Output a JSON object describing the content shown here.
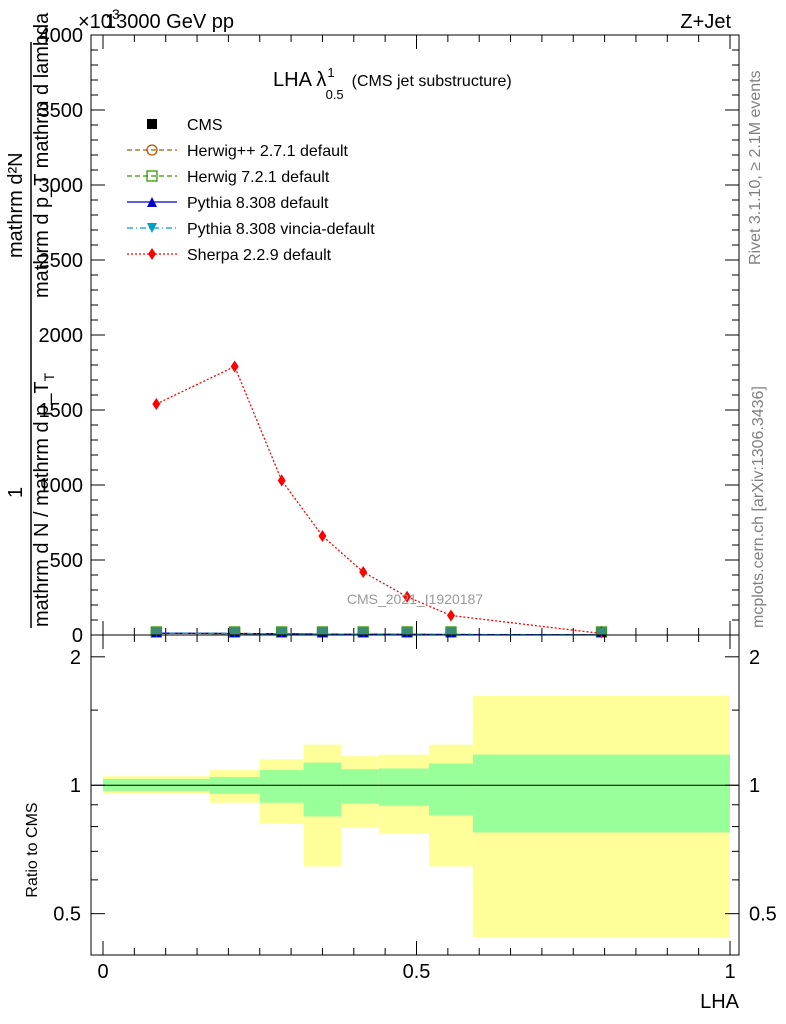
{
  "header": {
    "left": "13000 GeV pp",
    "right": "Z+Jet",
    "exponent": "×10",
    "exponent_power": "3"
  },
  "side_text": {
    "rivet": "Rivet 3.1.10, ≥ 2.1M events",
    "mcplots": "mcplots.cern.ch [arXiv:1306.3436]"
  },
  "watermark": "CMS_2021_I1920187",
  "chart_data": [
    {
      "type": "line",
      "title": "LHA λ",
      "title_sup": "1",
      "title_sub": "0.5",
      "title_suffix": "(CMS jet substructure)",
      "ylabel_top": "mathrm d²N",
      "ylabel_mid": "mathrm d p_T mathrm d lambda",
      "ylabel_one": "1",
      "ylabel_den": "mathrm d N / mathrm d p_T",
      "ylabel_den_sub": "T",
      "xlim": [
        0,
        1
      ],
      "ylim": [
        0,
        4000
      ],
      "yticks": [
        0,
        500,
        1000,
        1500,
        2000,
        2500,
        3000,
        3500,
        4000
      ],
      "ytick_labels": [
        "0",
        "500",
        "1000",
        "1500",
        "2000",
        "2500",
        "3000",
        "3500",
        "4000"
      ],
      "legend_position": "top-left",
      "series": [
        {
          "name": "CMS",
          "color": "#000000",
          "marker": "square",
          "x": [
            0.085,
            0.21,
            0.285,
            0.35,
            0.415,
            0.485,
            0.555,
            0.795
          ],
          "y": [
            12,
            10,
            8,
            6,
            5,
            4,
            3,
            1
          ]
        },
        {
          "name": "Herwig++ 2.7.1 default",
          "color": "#b35900",
          "marker": "circle-open",
          "dash": "dashed",
          "x": [
            0.085,
            0.21,
            0.285,
            0.35,
            0.415,
            0.485,
            0.555,
            0.795
          ],
          "y": [
            12,
            10,
            8,
            6,
            5,
            4,
            3,
            1
          ]
        },
        {
          "name": "Herwig 7.2.1 default",
          "color": "#339900",
          "marker": "square-open",
          "dash": "dashed",
          "x": [
            0.085,
            0.21,
            0.285,
            0.35,
            0.415,
            0.485,
            0.555,
            0.795
          ],
          "y": [
            12,
            10,
            8,
            6,
            5,
            4,
            3,
            1
          ]
        },
        {
          "name": "Pythia 8.308 default",
          "color": "#0000cc",
          "marker": "triangle-up",
          "dash": "solid",
          "x": [
            0.085,
            0.21,
            0.285,
            0.35,
            0.415,
            0.485,
            0.555,
            0.795
          ],
          "y": [
            12,
            10,
            8,
            6,
            5,
            4,
            3,
            1
          ]
        },
        {
          "name": "Pythia 8.308 vincia-default",
          "color": "#00a0c0",
          "marker": "triangle-down",
          "dash": "dashdot",
          "x": [
            0.085,
            0.21,
            0.285,
            0.35,
            0.415,
            0.485,
            0.555,
            0.795
          ],
          "y": [
            12,
            10,
            8,
            6,
            5,
            4,
            3,
            1
          ]
        },
        {
          "name": "Sherpa 2.2.9 default",
          "color": "#ff0000",
          "marker": "diamond",
          "dash": "dotted",
          "x": [
            0.085,
            0.21,
            0.285,
            0.35,
            0.415,
            0.485,
            0.555,
            0.795
          ],
          "y": [
            1540,
            1790,
            1030,
            660,
            420,
            255,
            130,
            10
          ]
        }
      ]
    },
    {
      "type": "area",
      "ylabel": "Ratio to CMS",
      "xlabel": "LHA",
      "xlim": [
        0,
        1
      ],
      "ylim": [
        0.4,
        2.25
      ],
      "yticks": [
        0.5,
        1,
        2
      ],
      "ytick_labels": [
        "0.5",
        "1",
        "2"
      ],
      "xticks": [
        0,
        0.5,
        1
      ],
      "xtick_labels": [
        "0",
        "0.5",
        "1"
      ],
      "reference": 1,
      "bands": [
        {
          "name": "stat",
          "color": "#99ff99",
          "edges": [
            0,
            0.17,
            0.25,
            0.32,
            0.38,
            0.44,
            0.52,
            0.59,
            1.0
          ],
          "lo": [
            0.97,
            0.955,
            0.91,
            0.845,
            0.905,
            0.895,
            0.85,
            0.775
          ],
          "hi": [
            1.035,
            1.045,
            1.085,
            1.13,
            1.09,
            1.095,
            1.125,
            1.18
          ]
        },
        {
          "name": "total",
          "color": "#ffff99",
          "edges": [
            0,
            0.17,
            0.25,
            0.32,
            0.38,
            0.44,
            0.52,
            0.59,
            1.0
          ],
          "lo": [
            0.955,
            0.91,
            0.815,
            0.645,
            0.795,
            0.77,
            0.645,
            0.44
          ],
          "hi": [
            1.05,
            1.085,
            1.15,
            1.245,
            1.17,
            1.18,
            1.245,
            1.62
          ]
        }
      ]
    }
  ]
}
